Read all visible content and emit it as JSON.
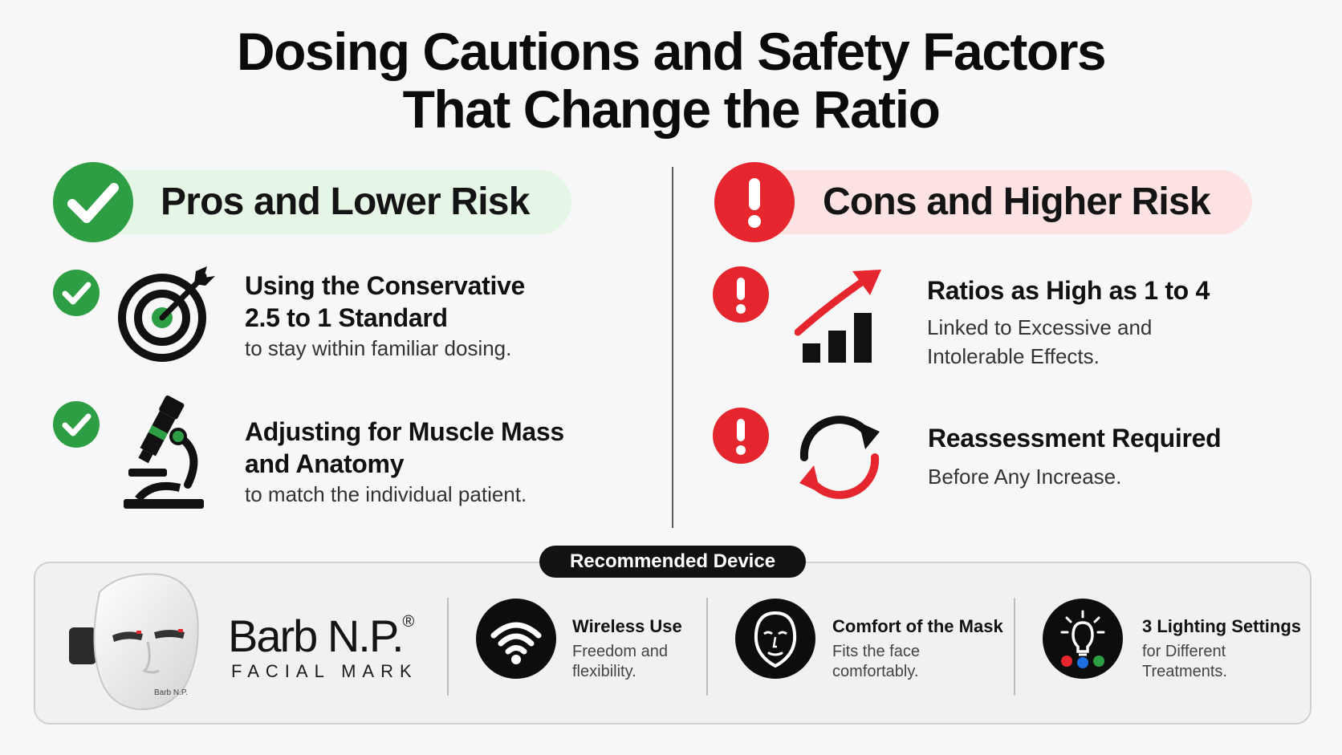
{
  "title": {
    "line1": "Dosing Cautions and Safety Factors",
    "line2": "That Change the Ratio"
  },
  "pros": {
    "heading": "Pros and Lower Risk",
    "accent": "#2e9e45",
    "items": [
      {
        "icon": "target-icon",
        "title_line1": "Using the Conservative",
        "title_line2": "2.5 to 1 Standard",
        "sub": "to stay within familiar dosing."
      },
      {
        "icon": "microscope-icon",
        "title_line1": "Adjusting for Muscle Mass",
        "title_line2": "and Anatomy",
        "sub": "to match the individual patient."
      }
    ]
  },
  "cons": {
    "heading": "Cons and Higher Risk",
    "accent": "#e5262f",
    "items": [
      {
        "icon": "rising-chart-icon",
        "title": "Ratios as High as 1 to 4",
        "sub_line1": "Linked to Excessive and",
        "sub_line2": "Intolerable Effects."
      },
      {
        "icon": "refresh-icon",
        "title": "Reassessment Required",
        "sub_line1": "Before Any Increase."
      }
    ]
  },
  "device": {
    "tab_label": "Recommended Device",
    "brand": "Barb N.P.",
    "brand_mark": "®",
    "brand_sub": "FACIAL MARK",
    "features": [
      {
        "icon": "wifi-icon",
        "title": "Wireless Use",
        "sub_line1": "Freedom and",
        "sub_line2": "flexibility."
      },
      {
        "icon": "face-mask-icon",
        "title": "Comfort of the Mask",
        "sub_line1": "Fits the face",
        "sub_line2": "comfortably."
      },
      {
        "icon": "lightbulb-icon",
        "title": "3 Lighting Settings",
        "sub_line1": "for Different",
        "sub_line2": "Treatments."
      }
    ]
  }
}
